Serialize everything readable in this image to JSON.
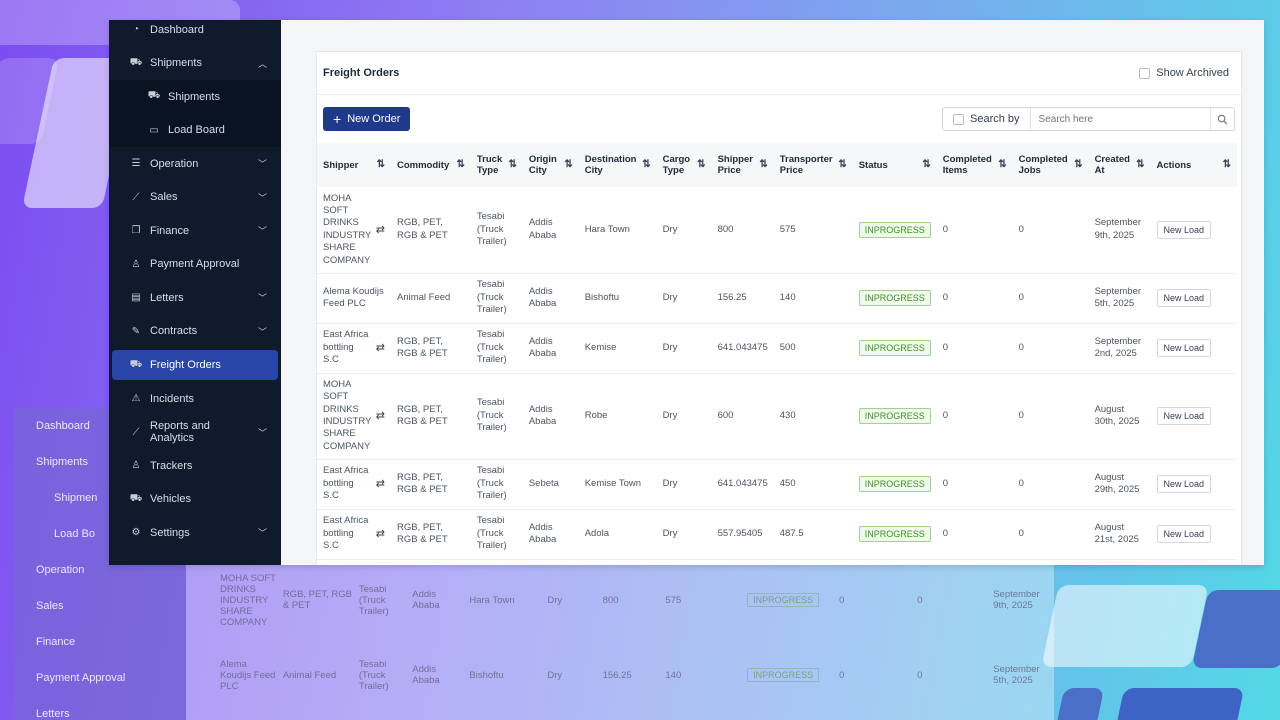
{
  "sidebar": {
    "items": [
      {
        "label": "Dashboard",
        "icon": "dashboard-icon",
        "glyph": "◔"
      },
      {
        "label": "Shipments",
        "icon": "shipments-icon",
        "glyph": "⛟",
        "chevron": "⌃"
      },
      {
        "label": "Shipments",
        "icon": "truck-icon",
        "glyph": "⛟",
        "sub": true
      },
      {
        "label": "Load Board",
        "icon": "briefcase-icon",
        "glyph": "▭",
        "sub": true
      },
      {
        "label": "Operation",
        "icon": "database-icon",
        "glyph": "☰",
        "chevron": "⌄"
      },
      {
        "label": "Sales",
        "icon": "chart-icon",
        "glyph": "⟋",
        "chevron": "⌄"
      },
      {
        "label": "Finance",
        "icon": "money-icon",
        "glyph": "❐",
        "chevron": "⌄"
      },
      {
        "label": "Payment Approval",
        "icon": "user-check-icon",
        "glyph": "♙"
      },
      {
        "label": "Letters",
        "icon": "document-icon",
        "glyph": "▤",
        "chevron": "⌄"
      },
      {
        "label": "Contracts",
        "icon": "edit-icon",
        "glyph": "✎",
        "chevron": "⌄"
      },
      {
        "label": "Freight Orders",
        "icon": "freight-icon",
        "glyph": "⛟",
        "active": true
      },
      {
        "label": "Incidents",
        "icon": "warning-icon",
        "glyph": "⚠"
      },
      {
        "label": "Reports and Analytics",
        "icon": "trend-icon",
        "glyph": "⟋",
        "chevron": "⌄"
      },
      {
        "label": "Trackers",
        "icon": "person-icon",
        "glyph": "♙"
      },
      {
        "label": "Vehicles",
        "icon": "vehicle-icon",
        "glyph": "⛟"
      },
      {
        "label": "Settings",
        "icon": "gear-icon",
        "glyph": "⚙",
        "chevron": "⌄"
      }
    ]
  },
  "card": {
    "title": "Freight Orders",
    "show_archived": "Show Archived",
    "new_order": "New Order",
    "search_by": "Search by",
    "search_placeholder": "Search here"
  },
  "table": {
    "headers": [
      "Shipper",
      "Commodity",
      "Truck Type",
      "Origin City",
      "Destination City",
      "Cargo Type",
      "Shipper Price",
      "Transporter Price",
      "Status",
      "Completed Items",
      "Completed Jobs",
      "Created At",
      "Actions"
    ],
    "action_label": "New Load",
    "rows": [
      {
        "shipper": "MOHA SOFT DRINKS INDUSTRY SHARE COMPANY",
        "swap": true,
        "commodity": "RGB, PET, RGB & PET",
        "truck": "Tesabi (Truck Trailer)",
        "origin": "Addis Ababa",
        "dest": "Hara Town",
        "cargo": "Dry",
        "sprice": "800",
        "tprice": "575",
        "status": "INPROGRESS",
        "items": "0",
        "jobs": "0",
        "created": "September 9th, 2025"
      },
      {
        "shipper": "Alema Koudijs Feed PLC",
        "swap": false,
        "commodity": "Animal Feed",
        "truck": "Tesabi (Truck Trailer)",
        "origin": "Addis Ababa",
        "dest": "Bishoftu",
        "cargo": "Dry",
        "sprice": "156.25",
        "tprice": "140",
        "status": "INPROGRESS",
        "items": "0",
        "jobs": "0",
        "created": "September 5th, 2025"
      },
      {
        "shipper": "East Africa bottling S.C",
        "swap": true,
        "commodity": "RGB, PET, RGB & PET",
        "truck": "Tesabi (Truck Trailer)",
        "origin": "Addis Ababa",
        "dest": "Kemise",
        "cargo": "Dry",
        "sprice": "641.043475",
        "tprice": "500",
        "status": "INPROGRESS",
        "items": "0",
        "jobs": "0",
        "created": "September 2nd, 2025"
      },
      {
        "shipper": "MOHA SOFT DRINKS INDUSTRY SHARE COMPANY",
        "swap": true,
        "commodity": "RGB, PET, RGB & PET",
        "truck": "Tesabi (Truck Trailer)",
        "origin": "Addis Ababa",
        "dest": "Robe",
        "cargo": "Dry",
        "sprice": "600",
        "tprice": "430",
        "status": "INPROGRESS",
        "items": "0",
        "jobs": "0",
        "created": "August 30th, 2025"
      },
      {
        "shipper": "East Africa bottling S.C",
        "swap": true,
        "commodity": "RGB, PET, RGB & PET",
        "truck": "Tesabi (Truck Trailer)",
        "origin": "Sebeta",
        "dest": "Kemise Town",
        "cargo": "Dry",
        "sprice": "641.043475",
        "tprice": "450",
        "status": "INPROGRESS",
        "items": "0",
        "jobs": "0",
        "created": "August 29th, 2025"
      },
      {
        "shipper": "East Africa bottling S.C",
        "swap": true,
        "commodity": "RGB, PET, RGB & PET",
        "truck": "Tesabi (Truck Trailer)",
        "origin": "Addis Ababa",
        "dest": "Adola",
        "cargo": "Dry",
        "sprice": "557.95405",
        "tprice": "487.5",
        "status": "INPROGRESS",
        "items": "0",
        "jobs": "0",
        "created": "August 21st, 2025"
      }
    ]
  },
  "ghost": {
    "side": [
      "Dashboard",
      "Shipments",
      "Shipmen",
      "Load Bo",
      "Operation",
      "Sales",
      "Finance",
      "Payment Approval",
      "Letters"
    ],
    "rows": [
      [
        "MOHA SOFT DRINKS INDUSTRY SHARE COMPANY",
        "RGB, PET, RGB & PET",
        "Tesabi (Truck Trailer)",
        "Addis Ababa",
        "Hara Town",
        "Dry",
        "800",
        "575",
        "INPROGRESS",
        "0",
        "0",
        "September 9th, 2025"
      ],
      [
        "Alema Koudijs Feed PLC",
        "Animal Feed",
        "Tesabi (Truck Trailer)",
        "Addis Ababa",
        "Bishoftu",
        "Dry",
        "156.25",
        "140",
        "INPROGRESS",
        "0",
        "0",
        "September 5th, 2025"
      ]
    ]
  }
}
